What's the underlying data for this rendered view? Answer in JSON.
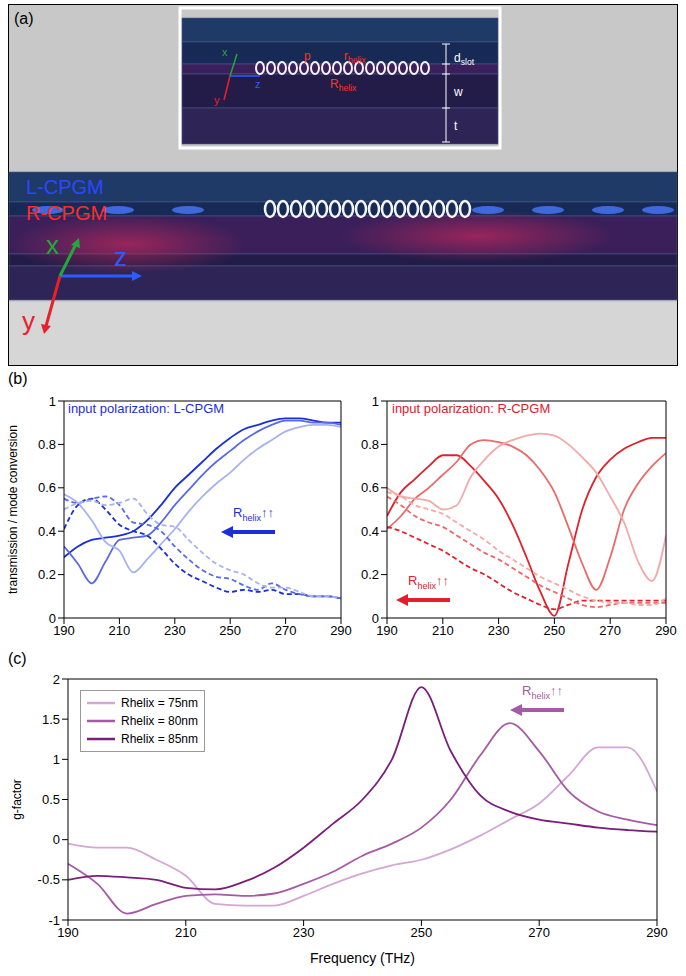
{
  "diagram": {
    "panel": "(a)",
    "mode_labels": [
      {
        "text": "L-CPGM",
        "color": "#2a48ff"
      },
      {
        "text": "R-CPGM",
        "color": "#ff2a2a"
      }
    ],
    "axes": [
      {
        "text": "x",
        "color": "#22a83a"
      },
      {
        "text": "y",
        "color": "#e8202a"
      },
      {
        "text": "z",
        "color": "#2a5cff"
      }
    ],
    "inset_labels": {
      "pitch": {
        "text": "p"
      },
      "small_radius": {
        "text": "r",
        "sub": "helix"
      },
      "large_radius": {
        "text": "R",
        "sub": "helix"
      },
      "slot": {
        "text": "d",
        "sub": "slot"
      },
      "width": {
        "text": "w"
      },
      "thickness": {
        "text": "t"
      }
    }
  },
  "chart_data": [
    {
      "type": "line",
      "panel": "(b)",
      "annotation": "input polarization: L-CPGM",
      "color": "#1b2fd8",
      "arrow_label": {
        "text": "R",
        "sub": "helix",
        "suffix": "↑↑"
      },
      "ylabel": "transmission / mode conversion",
      "x": [
        190,
        195,
        200,
        205,
        210,
        215,
        220,
        225,
        230,
        235,
        240,
        245,
        250,
        255,
        260,
        265,
        270,
        275,
        280,
        285,
        290
      ],
      "xlim": [
        190,
        290
      ],
      "xticks": [
        190,
        210,
        230,
        250,
        270,
        290
      ],
      "ylim": [
        0,
        1
      ],
      "yticks": [
        0,
        0.2,
        0.4,
        0.6,
        0.8,
        1
      ],
      "grid": false,
      "series": [
        {
          "color": "#1b2fd8",
          "line_style": "solid",
          "values": [
            0.28,
            0.33,
            0.36,
            0.37,
            0.38,
            0.4,
            0.45,
            0.52,
            0.6,
            0.66,
            0.72,
            0.78,
            0.83,
            0.87,
            0.89,
            0.91,
            0.92,
            0.92,
            0.91,
            0.9,
            0.9
          ]
        },
        {
          "color": "#5a6ae6",
          "line_style": "solid",
          "values": [
            0.33,
            0.25,
            0.16,
            0.26,
            0.36,
            0.37,
            0.38,
            0.44,
            0.52,
            0.59,
            0.66,
            0.72,
            0.77,
            0.82,
            0.86,
            0.89,
            0.91,
            0.91,
            0.9,
            0.9,
            0.89
          ]
        },
        {
          "color": "#a7b2f0",
          "line_style": "solid",
          "values": [
            0.57,
            0.53,
            0.45,
            0.35,
            0.31,
            0.21,
            0.27,
            0.34,
            0.41,
            0.49,
            0.56,
            0.62,
            0.67,
            0.73,
            0.78,
            0.82,
            0.86,
            0.88,
            0.89,
            0.89,
            0.88
          ]
        },
        {
          "color": "#1b2fd8",
          "line_style": "dashed",
          "values": [
            0.41,
            0.52,
            0.55,
            0.5,
            0.43,
            0.4,
            0.38,
            0.32,
            0.25,
            0.2,
            0.17,
            0.14,
            0.12,
            0.13,
            0.12,
            0.13,
            0.11,
            0.11,
            0.1,
            0.1,
            0.09
          ]
        },
        {
          "color": "#5a6ae6",
          "line_style": "dashed",
          "values": [
            0.55,
            0.53,
            0.55,
            0.56,
            0.52,
            0.44,
            0.43,
            0.4,
            0.33,
            0.27,
            0.22,
            0.19,
            0.18,
            0.15,
            0.13,
            0.16,
            0.13,
            0.11,
            0.1,
            0.1,
            0.09
          ]
        },
        {
          "color": "#a7b2f0",
          "line_style": "dashed",
          "values": [
            0.5,
            0.53,
            0.54,
            0.52,
            0.53,
            0.55,
            0.48,
            0.43,
            0.42,
            0.36,
            0.3,
            0.25,
            0.22,
            0.2,
            0.16,
            0.14,
            0.14,
            0.12,
            0.1,
            0.1,
            0.09
          ]
        }
      ]
    },
    {
      "type": "line",
      "annotation": "input polarization: R-CPGM",
      "color": "#e0202a",
      "arrow_label": {
        "text": "R",
        "sub": "helix",
        "suffix": "↑↑"
      },
      "x": [
        190,
        195,
        200,
        205,
        210,
        215,
        220,
        225,
        230,
        235,
        240,
        245,
        250,
        255,
        260,
        265,
        270,
        275,
        280,
        285,
        290
      ],
      "xlim": [
        190,
        290
      ],
      "xticks": [
        190,
        210,
        230,
        250,
        270,
        290
      ],
      "ylim": [
        0,
        1
      ],
      "yticks": [
        0,
        0.2,
        0.4,
        0.6,
        0.8,
        1
      ],
      "grid": false,
      "series": [
        {
          "color": "#e0202a",
          "line_style": "solid",
          "values": [
            0.47,
            0.58,
            0.64,
            0.7,
            0.75,
            0.75,
            0.7,
            0.63,
            0.55,
            0.43,
            0.28,
            0.12,
            0.01,
            0.25,
            0.5,
            0.65,
            0.73,
            0.78,
            0.81,
            0.83,
            0.83
          ]
        },
        {
          "color": "#ea6a6a",
          "line_style": "solid",
          "values": [
            0.41,
            0.47,
            0.55,
            0.6,
            0.66,
            0.72,
            0.8,
            0.82,
            0.81,
            0.79,
            0.75,
            0.68,
            0.58,
            0.42,
            0.25,
            0.13,
            0.28,
            0.5,
            0.62,
            0.7,
            0.76
          ]
        },
        {
          "color": "#f2aaa8",
          "line_style": "solid",
          "values": [
            0.6,
            0.56,
            0.55,
            0.54,
            0.5,
            0.52,
            0.65,
            0.73,
            0.79,
            0.82,
            0.84,
            0.85,
            0.84,
            0.8,
            0.74,
            0.67,
            0.56,
            0.44,
            0.26,
            0.17,
            0.38
          ]
        },
        {
          "color": "#e0202a",
          "line_style": "dashed",
          "values": [
            0.42,
            0.4,
            0.37,
            0.34,
            0.31,
            0.27,
            0.23,
            0.2,
            0.16,
            0.12,
            0.09,
            0.06,
            0.04,
            0.06,
            0.08,
            0.08,
            0.08,
            0.08,
            0.08,
            0.08,
            0.08
          ]
        },
        {
          "color": "#ea6a6a",
          "line_style": "dashed",
          "values": [
            0.56,
            0.52,
            0.47,
            0.44,
            0.42,
            0.38,
            0.34,
            0.3,
            0.27,
            0.23,
            0.19,
            0.15,
            0.12,
            0.09,
            0.06,
            0.05,
            0.06,
            0.07,
            0.07,
            0.07,
            0.07
          ]
        },
        {
          "color": "#f2aaa8",
          "line_style": "dashed",
          "values": [
            0.58,
            0.56,
            0.52,
            0.5,
            0.48,
            0.44,
            0.4,
            0.36,
            0.31,
            0.27,
            0.23,
            0.19,
            0.16,
            0.13,
            0.1,
            0.08,
            0.07,
            0.07,
            0.06,
            0.06,
            0.09
          ]
        }
      ]
    },
    {
      "type": "line",
      "panel": "(c)",
      "color": "#a55aa5",
      "arrow_label": {
        "text": "R",
        "sub": "helix",
        "suffix": "↑↑"
      },
      "xlabel": "Frequency (THz)",
      "ylabel": "g-factor",
      "legend": "top-left",
      "x": [
        190,
        195,
        200,
        205,
        210,
        215,
        220,
        225,
        230,
        235,
        240,
        245,
        250,
        255,
        260,
        265,
        270,
        275,
        280,
        285,
        290
      ],
      "xlim": [
        190,
        290
      ],
      "xticks": [
        190,
        210,
        230,
        250,
        270,
        290
      ],
      "ylim": [
        -1,
        2
      ],
      "yticks": [
        -1,
        -0.5,
        0,
        0.5,
        1,
        1.5,
        2
      ],
      "grid": false,
      "series": [
        {
          "name": "Rhelix = 75nm",
          "color": "#d4a6d4",
          "line_style": "solid",
          "values": [
            -0.05,
            -0.1,
            -0.1,
            -0.25,
            -0.45,
            -0.8,
            -0.82,
            -0.82,
            -0.7,
            -0.55,
            -0.42,
            -0.32,
            -0.25,
            -0.12,
            0.05,
            0.25,
            0.45,
            0.8,
            1.15,
            1.15,
            0.6
          ]
        },
        {
          "name": "Rhelix = 80nm",
          "color": "#a55aa5",
          "line_style": "solid",
          "values": [
            -0.3,
            -0.55,
            -0.92,
            -0.8,
            -0.7,
            -0.68,
            -0.7,
            -0.67,
            -0.55,
            -0.4,
            -0.2,
            -0.05,
            0.15,
            0.5,
            1.05,
            1.45,
            1.1,
            0.6,
            0.35,
            0.25,
            0.18
          ]
        },
        {
          "name": "Rhelix = 85nm",
          "color": "#7a1e7a",
          "line_style": "solid",
          "values": [
            -0.5,
            -0.45,
            -0.47,
            -0.5,
            -0.6,
            -0.62,
            -0.52,
            -0.35,
            -0.1,
            0.2,
            0.5,
            1.0,
            1.9,
            1.1,
            0.55,
            0.35,
            0.25,
            0.2,
            0.15,
            0.12,
            0.1
          ]
        }
      ]
    }
  ]
}
